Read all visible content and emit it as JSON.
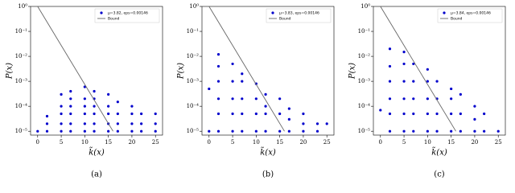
{
  "chart_data": [
    {
      "type": "scatter",
      "caption": "(a)",
      "xlabel": "k̃(x)",
      "ylabel": "P(x)",
      "log_y": true,
      "legend": "upper right",
      "xlim": [
        -1.5,
        26.5
      ],
      "xticks": [
        0,
        5,
        10,
        15,
        20,
        25
      ],
      "ylim": [
        7e-06,
        1
      ],
      "yticks": [
        {
          "value": 1e-05,
          "label": "10⁻⁵"
        },
        {
          "value": 0.0001,
          "label": "10⁻⁴"
        },
        {
          "value": 0.001,
          "label": "10⁻³"
        },
        {
          "value": 0.01,
          "label": "10⁻²"
        },
        {
          "value": 0.1,
          "label": "10⁻¹"
        },
        {
          "value": 1,
          "label": "10⁰"
        }
      ],
      "series": [
        {
          "name": "μ=3.82, eps=0.00146",
          "color": "#0000cc",
          "x": [
            0,
            2,
            2,
            2,
            5,
            5,
            5,
            5,
            5,
            7,
            7,
            7,
            7,
            7,
            7,
            10,
            10,
            10,
            10,
            10,
            10,
            12,
            12,
            12,
            12,
            12,
            12,
            15,
            15,
            15,
            15,
            15,
            17,
            17,
            17,
            17,
            20,
            20,
            20,
            20,
            22,
            22,
            22,
            25,
            25,
            25
          ],
          "values": [
            1e-05,
            1e-05,
            2e-05,
            4e-05,
            1e-05,
            2e-05,
            5e-05,
            0.0001,
            0.0003,
            1e-05,
            2e-05,
            5e-05,
            0.0001,
            0.0002,
            0.0004,
            1e-05,
            2e-05,
            5e-05,
            0.0001,
            0.0002,
            0.0006,
            1e-05,
            2e-05,
            5e-05,
            0.0001,
            0.0002,
            0.0004,
            1e-05,
            2e-05,
            5e-05,
            0.0001,
            0.0003,
            1e-05,
            2e-05,
            5e-05,
            0.00015,
            1e-05,
            2e-05,
            5e-05,
            0.0001,
            1e-05,
            2e-05,
            5e-05,
            1e-05,
            2e-05,
            5e-05
          ]
        },
        {
          "name": "Bound",
          "color": "#666666",
          "line": true,
          "x": [
            0,
            16
          ],
          "values": [
            1,
            1e-05
          ]
        }
      ]
    },
    {
      "type": "scatter",
      "caption": "(b)",
      "xlabel": "k̃(x)",
      "ylabel": "P(x)",
      "log_y": true,
      "legend": "upper right",
      "xlim": [
        -1.5,
        26.5
      ],
      "xticks": [
        0,
        5,
        10,
        15,
        20,
        25
      ],
      "ylim": [
        7e-06,
        1
      ],
      "yticks": [
        {
          "value": 1e-05,
          "label": "10⁻⁵"
        },
        {
          "value": 0.0001,
          "label": "10⁻⁴"
        },
        {
          "value": 0.001,
          "label": "10⁻³"
        },
        {
          "value": 0.01,
          "label": "10⁻²"
        },
        {
          "value": 0.1,
          "label": "10⁻¹"
        },
        {
          "value": 1,
          "label": "10⁰"
        }
      ],
      "series": [
        {
          "name": "μ=3.83, eps=0.00146",
          "color": "#0000cc",
          "x": [
            0,
            0,
            2,
            2,
            2,
            2,
            2,
            2,
            5,
            5,
            5,
            5,
            5,
            7,
            7,
            7,
            7,
            7,
            10,
            10,
            10,
            10,
            12,
            12,
            12,
            12,
            15,
            15,
            15,
            17,
            17,
            17,
            20,
            20,
            20,
            23,
            23,
            25
          ],
          "values": [
            1e-05,
            0.0005,
            1e-05,
            5e-05,
            0.0002,
            0.001,
            0.004,
            0.012,
            1e-05,
            5e-05,
            0.0002,
            0.001,
            0.005,
            1e-05,
            5e-05,
            0.0002,
            0.001,
            0.002,
            1e-05,
            5e-05,
            0.0002,
            0.0008,
            1e-05,
            5e-05,
            0.0001,
            0.0003,
            1e-05,
            5e-05,
            0.0002,
            1e-05,
            3e-05,
            8e-05,
            1e-05,
            2e-05,
            5e-05,
            1e-05,
            2e-05,
            2e-05
          ]
        },
        {
          "name": "Bound",
          "color": "#666666",
          "line": true,
          "x": [
            0,
            16
          ],
          "values": [
            1,
            1e-05
          ]
        }
      ]
    },
    {
      "type": "scatter",
      "caption": "(c)",
      "xlabel": "k̃(x)",
      "ylabel": "P(x)",
      "log_y": true,
      "legend": "upper right",
      "xlim": [
        -1.5,
        26.5
      ],
      "xticks": [
        0,
        5,
        10,
        15,
        20,
        25
      ],
      "ylim": [
        7e-06,
        1
      ],
      "yticks": [
        {
          "value": 1e-05,
          "label": "10⁻⁵"
        },
        {
          "value": 0.0001,
          "label": "10⁻⁴"
        },
        {
          "value": 0.001,
          "label": "10⁻³"
        },
        {
          "value": 0.01,
          "label": "10⁻²"
        },
        {
          "value": 0.1,
          "label": "10⁻¹"
        },
        {
          "value": 1,
          "label": "10⁰"
        }
      ],
      "series": [
        {
          "name": "μ=3.84, eps=0.00146",
          "color": "#0000cc",
          "x": [
            0,
            2,
            2,
            2,
            2,
            2,
            2,
            5,
            5,
            5,
            5,
            5,
            5,
            7,
            7,
            7,
            7,
            7,
            10,
            10,
            10,
            10,
            10,
            12,
            12,
            12,
            12,
            15,
            15,
            15,
            15,
            17,
            17,
            17,
            20,
            20,
            20,
            22,
            22,
            25
          ],
          "values": [
            7e-05,
            1e-05,
            5e-05,
            0.0002,
            0.001,
            0.004,
            0.02,
            1e-05,
            5e-05,
            0.0002,
            0.001,
            0.005,
            0.015,
            1e-05,
            5e-05,
            0.0002,
            0.001,
            0.005,
            1e-05,
            5e-05,
            0.0002,
            0.001,
            0.003,
            1e-05,
            5e-05,
            0.0002,
            0.001,
            1e-05,
            5e-05,
            0.0002,
            0.0005,
            1e-05,
            5e-05,
            0.0003,
            1e-05,
            3e-05,
            0.0001,
            1e-05,
            5e-05,
            1e-05
          ]
        },
        {
          "name": "Bound",
          "color": "#666666",
          "line": true,
          "x": [
            0,
            16
          ],
          "values": [
            1,
            1e-05
          ]
        }
      ]
    }
  ]
}
